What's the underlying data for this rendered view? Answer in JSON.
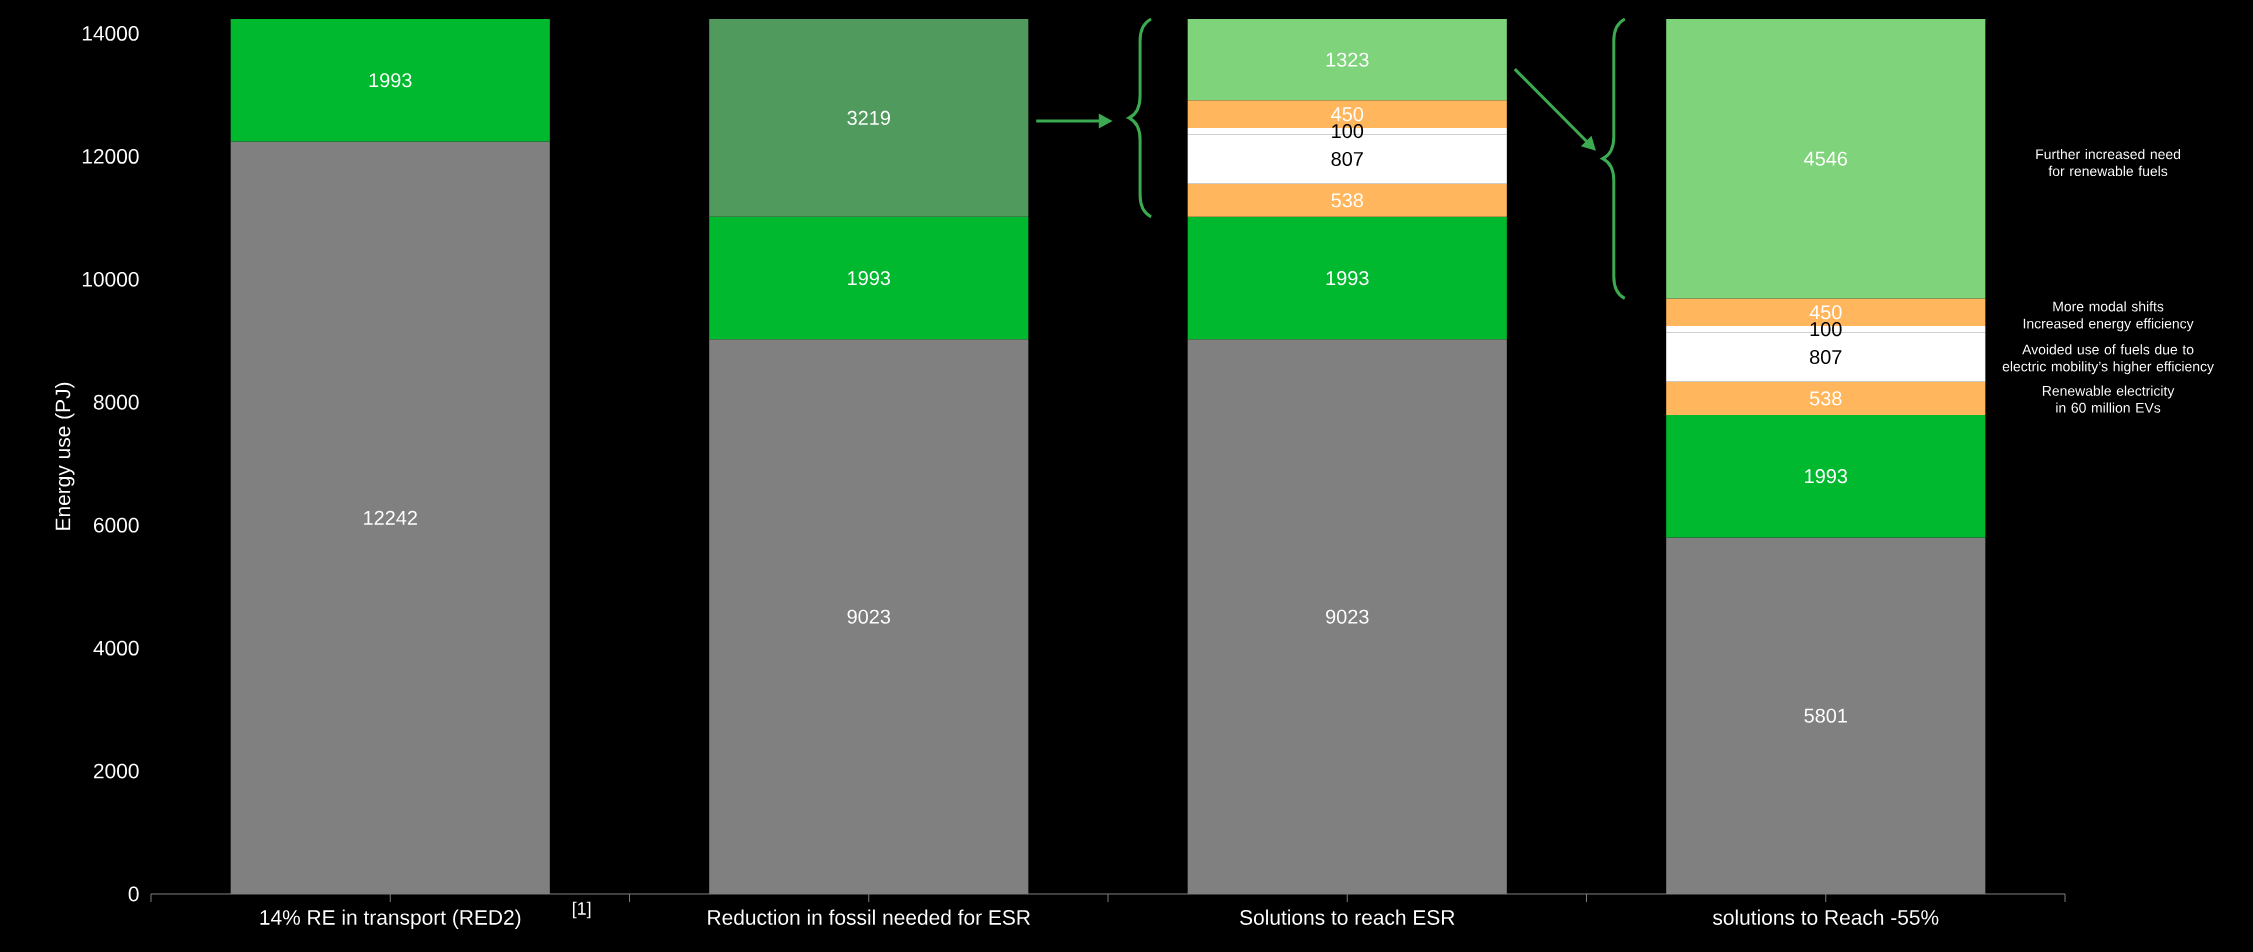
{
  "chart_data": {
    "type": "bar",
    "stacked": true,
    "data_labels": true,
    "ylabel": "Energy use (PJ)",
    "categories": [
      "14% RE in transport (RED2)",
      "Reduction in fossil needed for ESR",
      "Solutions to reach ESR",
      "solutions to Reach -55%"
    ],
    "ylim": [
      0,
      14235
    ],
    "yticks": [
      0,
      2000,
      4000,
      6000,
      8000,
      10000,
      12000,
      14000
    ],
    "series": [
      {
        "color": "#808080",
        "values": [
          12242,
          9023,
          9023,
          5801
        ]
      },
      {
        "color": "#00b92e",
        "values": [
          1993,
          1993,
          1993,
          1993
        ]
      },
      {
        "color": "#4f9a5c",
        "values": [
          null,
          3219,
          null,
          null
        ]
      },
      {
        "color": "#ffb65c",
        "values": [
          null,
          null,
          538,
          538
        ]
      },
      {
        "color": "#ffffff",
        "values": [
          null,
          null,
          807,
          807
        ]
      },
      {
        "color": "#ffffff",
        "values": [
          null,
          null,
          100,
          100
        ]
      },
      {
        "color": "#ffb65c",
        "values": [
          null,
          null,
          450,
          450
        ]
      },
      {
        "color": "#7ed37b",
        "values": [
          null,
          null,
          1323,
          4546
        ]
      }
    ],
    "annotations": [
      "Further increased need for renewable fuels",
      "More modal shifts",
      "Increased energy efficiency",
      "Avoided use of fuels due to electric mobility’s higher efficiency",
      "Renewable electricity in 60 million EVs",
      "[1]"
    ]
  }
}
